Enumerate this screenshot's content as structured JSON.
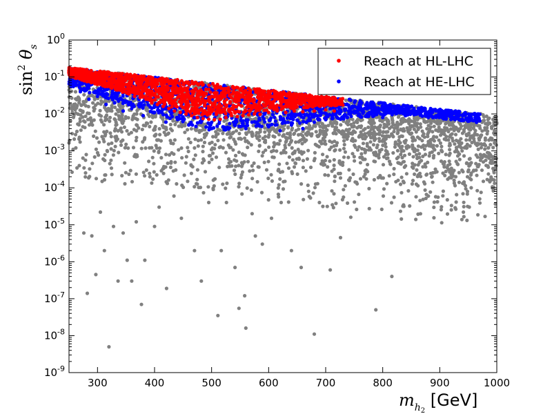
{
  "chart_data": {
    "type": "scatter",
    "title": "",
    "xlabel": "m_{h_2} [GeV]",
    "ylabel": "sin^2 θ_s",
    "xlim": [
      250,
      1000
    ],
    "ylim": [
      1e-09,
      1
    ],
    "yscale": "log",
    "grid": false,
    "legend_position": "top-right",
    "x_ticks": [
      "300",
      "400",
      "500",
      "600",
      "700",
      "800",
      "900",
      "1000"
    ],
    "y_ticks": [
      {
        "base": "10",
        "exp": "0"
      },
      {
        "base": "10",
        "exp": "-1"
      },
      {
        "base": "10",
        "exp": "-2"
      },
      {
        "base": "10",
        "exp": "-3"
      },
      {
        "base": "10",
        "exp": "-4"
      },
      {
        "base": "10",
        "exp": "-5"
      },
      {
        "base": "10",
        "exp": "-6"
      },
      {
        "base": "10",
        "exp": "-7"
      },
      {
        "base": "10",
        "exp": "-8"
      },
      {
        "base": "10",
        "exp": "-9"
      }
    ],
    "legend": [
      {
        "label": "Reach at HL-LHC",
        "color": "#ff0000"
      },
      {
        "label": "Reach at HE-LHC",
        "color": "#0000ff"
      }
    ],
    "series": [
      {
        "color": "#808080",
        "points": [
          [
            262,
            0.0012
          ],
          [
            268,
            0.0004
          ],
          [
            276,
            6e-06
          ],
          [
            282,
            1.4e-07
          ],
          [
            290,
            5e-06
          ],
          [
            297,
            4.5e-07
          ],
          [
            305,
            2.2e-05
          ],
          [
            312,
            2e-06
          ],
          [
            320,
            5e-09
          ],
          [
            328,
            9e-06
          ],
          [
            336,
            3e-07
          ],
          [
            345,
            6e-06
          ],
          [
            352,
            1.1e-06
          ],
          [
            360,
            3e-07
          ],
          [
            368,
            1.2e-05
          ],
          [
            377,
            7e-08
          ],
          [
            383,
            1.1e-06
          ],
          [
            392,
            0.0002
          ],
          [
            400,
            9e-06
          ],
          [
            408,
            3e-05
          ],
          [
            421,
            1.9e-07
          ],
          [
            434,
            6e-05
          ],
          [
            447,
            1.5e-05
          ],
          [
            458,
            0.00015
          ],
          [
            470,
            2e-06
          ],
          [
            482,
            3e-07
          ],
          [
            495,
            4e-05
          ],
          [
            503,
            9e-05
          ],
          [
            511,
            3.5e-08
          ],
          [
            517,
            2e-06
          ],
          [
            526,
            4e-05
          ],
          [
            541,
            7e-07
          ],
          [
            548,
            5.5e-08
          ],
          [
            558,
            1.2e-07
          ],
          [
            560,
            1.6e-08
          ],
          [
            571,
            2e-05
          ],
          [
            589,
            3e-06
          ],
          [
            605,
            1.5e-05
          ],
          [
            622,
            4e-05
          ],
          [
            640,
            2e-06
          ],
          [
            657,
            7e-07
          ],
          [
            680,
            1.1e-08
          ],
          [
            689,
            4e-05
          ],
          [
            708,
            6e-07
          ],
          [
            726,
            4.5e-06
          ],
          [
            744,
            1.6e-05
          ],
          [
            767,
            0.0002
          ],
          [
            788,
            5e-08
          ],
          [
            801,
            6e-05
          ],
          [
            816,
            4e-07
          ],
          [
            836,
            0.00015
          ],
          [
            858,
            1.4e-05
          ],
          [
            880,
            6e-05
          ],
          [
            906,
            0.00045
          ],
          [
            928,
            0.0002
          ],
          [
            952,
            0.0006
          ],
          [
            974,
            0.0003
          ],
          [
            992,
            0.0005
          ],
          [
            310,
            0.0006
          ],
          [
            350,
            0.0015
          ],
          [
            420,
            0.0008
          ],
          [
            470,
            0.0012
          ],
          [
            530,
            0.0006
          ],
          [
            580,
            0.0022
          ],
          [
            630,
            0.0009
          ],
          [
            690,
            0.0018
          ],
          [
            750,
            0.0007
          ],
          [
            810,
            0.0025
          ],
          [
            870,
            0.0013
          ],
          [
            940,
            0.003
          ],
          [
            980,
            0.0014
          ]
        ]
      },
      {
        "name": "Reach at HE-LHC",
        "color": "#0000ff",
        "points": [
          [
            255,
            0.07
          ],
          [
            270,
            0.04
          ],
          [
            285,
            0.025
          ],
          [
            300,
            0.03
          ],
          [
            315,
            0.018
          ],
          [
            330,
            0.02
          ],
          [
            345,
            0.012
          ],
          [
            360,
            0.014
          ],
          [
            380,
            0.009
          ],
          [
            400,
            0.011
          ],
          [
            420,
            0.006
          ],
          [
            440,
            0.008
          ],
          [
            460,
            0.005
          ],
          [
            480,
            0.006
          ],
          [
            500,
            0.004
          ],
          [
            520,
            0.0045
          ],
          [
            540,
            0.005
          ],
          [
            560,
            0.004
          ],
          [
            580,
            0.006
          ],
          [
            600,
            0.0045
          ],
          [
            620,
            0.0035
          ],
          [
            640,
            0.005
          ],
          [
            660,
            0.004
          ],
          [
            680,
            0.006
          ],
          [
            700,
            0.007
          ],
          [
            720,
            0.008
          ],
          [
            740,
            0.012
          ],
          [
            760,
            0.009
          ],
          [
            780,
            0.01
          ],
          [
            800,
            0.008
          ],
          [
            820,
            0.011
          ],
          [
            840,
            0.009
          ],
          [
            860,
            0.01
          ],
          [
            880,
            0.008
          ],
          [
            900,
            0.009
          ],
          [
            920,
            0.0085
          ],
          [
            940,
            0.007
          ],
          [
            955,
            0.008
          ],
          [
            970,
            0.0065
          ]
        ]
      },
      {
        "name": "Reach at HL-LHC",
        "color": "#ff0000",
        "points": [
          [
            255,
            0.16
          ],
          [
            265,
            0.12
          ],
          [
            275,
            0.1
          ],
          [
            285,
            0.09
          ],
          [
            295,
            0.075
          ],
          [
            305,
            0.07
          ],
          [
            315,
            0.06
          ],
          [
            325,
            0.05
          ],
          [
            335,
            0.045
          ],
          [
            345,
            0.04
          ],
          [
            355,
            0.035
          ],
          [
            365,
            0.03
          ],
          [
            375,
            0.028
          ],
          [
            385,
            0.025
          ],
          [
            395,
            0.02
          ],
          [
            405,
            0.018
          ],
          [
            415,
            0.016
          ],
          [
            425,
            0.014
          ],
          [
            435,
            0.012
          ],
          [
            445,
            0.011
          ],
          [
            455,
            0.01
          ],
          [
            465,
            0.009
          ],
          [
            475,
            0.008
          ],
          [
            485,
            0.0075
          ],
          [
            495,
            0.0072
          ],
          [
            505,
            0.007
          ],
          [
            515,
            0.0072
          ],
          [
            525,
            0.008
          ],
          [
            535,
            0.009
          ],
          [
            545,
            0.0085
          ],
          [
            555,
            0.009
          ],
          [
            565,
            0.0095
          ],
          [
            575,
            0.01
          ],
          [
            585,
            0.0098
          ],
          [
            600,
            0.011
          ],
          [
            615,
            0.012
          ],
          [
            630,
            0.011
          ],
          [
            645,
            0.012
          ],
          [
            660,
            0.0115
          ],
          [
            680,
            0.012
          ],
          [
            700,
            0.013
          ],
          [
            715,
            0.012
          ]
        ]
      }
    ]
  }
}
